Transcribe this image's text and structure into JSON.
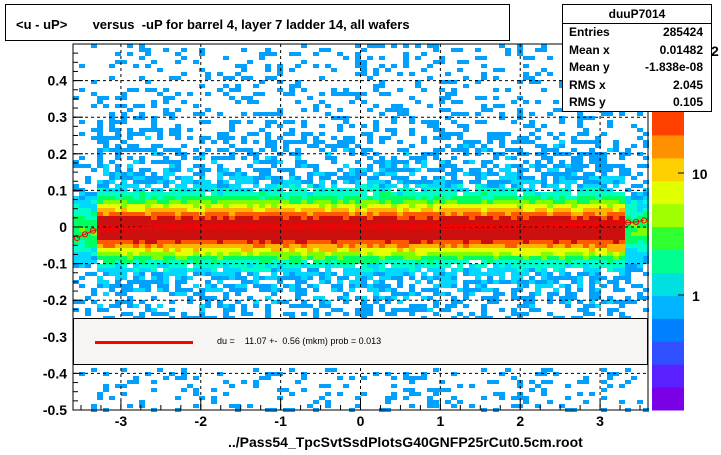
{
  "title": "<u - uP>       versus  -uP for barrel 4, layer 7 ladder 14, all wafers",
  "stats": {
    "name": "duuP7014",
    "rows": [
      {
        "key": "Entries",
        "value": "285424"
      },
      {
        "key": "Mean x",
        "value": "0.01482"
      },
      {
        "key": "Mean y",
        "value": "-1.838e-08"
      },
      {
        "key": "RMS x",
        "value": "2.045"
      },
      {
        "key": "RMS y",
        "value": "0.105"
      }
    ]
  },
  "legend": {
    "text": "du =    11.07 +-  0.56 (mkm) prob = 0.013",
    "line_color": "#ff0000"
  },
  "footer": "../Pass54_TpcSvtSsdPlotsG40GNFP25rCut0.5cm.root",
  "colorbar": {
    "labels": [
      "10",
      "1"
    ],
    "top_partial_label": "2",
    "scale": "log"
  },
  "chart_data": {
    "type": "heatmap",
    "title": "<u - uP>       versus  -uP for barrel 4, layer 7 ladder 14, all wafers",
    "xlim": [
      -3.6,
      3.6
    ],
    "ylim": [
      -0.5,
      0.5
    ],
    "x_ticks": [
      -3,
      -2,
      -1,
      0,
      1,
      2,
      3
    ],
    "x_tick_labels": [
      "-3",
      "-2",
      "-1",
      "0",
      "1",
      "2",
      "3"
    ],
    "y_ticks": [
      -0.5,
      -0.4,
      -0.3,
      -0.2,
      -0.1,
      0,
      0.1,
      0.2,
      0.3,
      0.4
    ],
    "y_tick_labels": [
      "-0.5",
      "-0.4",
      "-0.3",
      "-0.2",
      "-0.1",
      "0",
      "0.1",
      "0.2",
      "0.3",
      "0.4"
    ],
    "grid": true,
    "z_scale": "log",
    "profile": {
      "name": "du",
      "color": "#ff0000",
      "x": [
        -3.55,
        -3.45,
        -3.35,
        -3.25,
        -3.15,
        -3.05,
        -2.95,
        -2.85,
        -2.75,
        -2.65,
        -2.55,
        -2.45,
        -2.35,
        -2.25,
        -2.15,
        -2.05,
        -1.95,
        -1.85,
        -1.75,
        -1.65,
        -1.55,
        -1.45,
        -1.35,
        -1.25,
        -1.15,
        -1.05,
        -0.95,
        -0.85,
        -0.75,
        -0.65,
        -0.55,
        -0.45,
        -0.35,
        -0.25,
        -0.15,
        -0.05,
        0.05,
        0.15,
        0.25,
        0.35,
        0.45,
        0.55,
        0.65,
        0.75,
        0.85,
        0.95,
        1.05,
        1.15,
        1.25,
        1.35,
        1.45,
        1.55,
        1.65,
        1.75,
        1.85,
        1.95,
        2.05,
        2.15,
        2.25,
        2.35,
        2.45,
        2.55,
        2.65,
        2.75,
        2.85,
        2.95,
        3.05,
        3.15,
        3.25,
        3.35,
        3.45,
        3.55
      ],
      "y": [
        -0.03,
        -0.02,
        -0.01,
        -0.005,
        -0.004,
        -0.003,
        -0.002,
        -0.002,
        -0.001,
        -0.001,
        0.0,
        0.0,
        0.0,
        0.0,
        0.0,
        0.001,
        0.0,
        0.0,
        0.0,
        0.0,
        0.0,
        0.0,
        0.0,
        0.0,
        0.0,
        0.0,
        0.0,
        0.0,
        0.0,
        0.0,
        0.0,
        0.0,
        0.0,
        0.0,
        0.0,
        0.0,
        0.0,
        0.0,
        0.0,
        0.0,
        0.0,
        0.0,
        0.0,
        0.0,
        0.0,
        0.0,
        0.001,
        0.001,
        0.001,
        0.001,
        0.002,
        0.002,
        0.002,
        0.003,
        0.003,
        0.003,
        0.004,
        0.004,
        0.005,
        0.005,
        0.006,
        0.006,
        0.007,
        0.007,
        0.008,
        0.008,
        0.009,
        0.01,
        0.011,
        0.012,
        0.014,
        0.018
      ]
    }
  }
}
